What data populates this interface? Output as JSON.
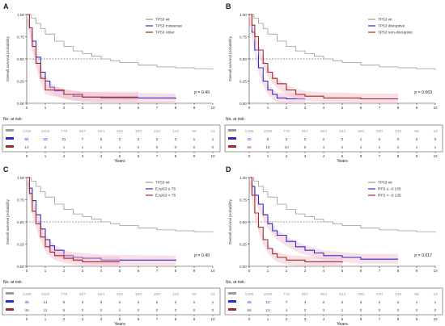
{
  "chart_data": [
    {
      "type": "line",
      "panel_label": "A",
      "ylabel": "Overall survival probability",
      "xlabel": "Years",
      "xlim": [
        0,
        10
      ],
      "ylim": [
        0,
        1
      ],
      "x_ticks": [
        "0",
        "1",
        "2",
        "3",
        "4",
        "5",
        "6",
        "7",
        "8",
        "9",
        "10"
      ],
      "y_ticks": [
        "0.00",
        "0.25",
        "0.50",
        "0.75",
        "1.00"
      ],
      "median_line": 0.5,
      "legend_position": "top-right",
      "pvalue": "p = 0.49",
      "risk_title": "No. at risk:",
      "series": [
        {
          "name": "TP53 wt",
          "color": "#9a9a9a",
          "points": [
            [
              0,
              1
            ],
            [
              0.25,
              0.96
            ],
            [
              0.5,
              0.9
            ],
            [
              0.75,
              0.84
            ],
            [
              1,
              0.78
            ],
            [
              1.5,
              0.7
            ],
            [
              2,
              0.64
            ],
            [
              2.5,
              0.59
            ],
            [
              3,
              0.56
            ],
            [
              3.5,
              0.53
            ],
            [
              4,
              0.5
            ],
            [
              4.5,
              0.48
            ],
            [
              5,
              0.46
            ],
            [
              6,
              0.43
            ],
            [
              7,
              0.41
            ],
            [
              8,
              0.4
            ],
            [
              9,
              0.39
            ],
            [
              10,
              0.38
            ]
          ],
          "risk": [
            "1439",
            "1025",
            "778",
            "607",
            "504",
            "424",
            "320",
            "220",
            "143",
            "66",
            "19"
          ]
        },
        {
          "name": "TP53 missense",
          "color": "#2a2ac8",
          "points": [
            [
              0,
              1
            ],
            [
              0.15,
              0.85
            ],
            [
              0.3,
              0.7
            ],
            [
              0.5,
              0.52
            ],
            [
              0.75,
              0.35
            ],
            [
              1,
              0.25
            ],
            [
              1.25,
              0.18
            ],
            [
              1.5,
              0.14
            ],
            [
              2,
              0.1
            ],
            [
              2.5,
              0.08
            ],
            [
              3,
              0.07
            ],
            [
              4,
              0.06
            ],
            [
              8,
              0.05
            ]
          ],
          "risk": [
            "84",
            "22",
            "11",
            "7",
            "5",
            "3",
            "2",
            "2",
            "2",
            "1",
            "1"
          ]
        },
        {
          "name": "TP53 other",
          "color": "#9b2d24",
          "points": [
            [
              0,
              1
            ],
            [
              0.15,
              0.85
            ],
            [
              0.3,
              0.64
            ],
            [
              0.5,
              0.45
            ],
            [
              0.75,
              0.28
            ],
            [
              1,
              0.15
            ],
            [
              2,
              0.1
            ],
            [
              3,
              0.07
            ],
            [
              6,
              0.07
            ]
          ],
          "risk": [
            "14",
            "2",
            "1",
            "1",
            "1",
            "1",
            "0",
            "0",
            "0",
            "0",
            "0"
          ]
        }
      ]
    },
    {
      "type": "line",
      "panel_label": "B",
      "ylabel": "Overall survival probability",
      "xlabel": "Years",
      "xlim": [
        0,
        10
      ],
      "ylim": [
        0,
        1
      ],
      "x_ticks": [
        "0",
        "1",
        "2",
        "3",
        "4",
        "5",
        "6",
        "7",
        "8",
        "9",
        "10"
      ],
      "y_ticks": [
        "0.00",
        "0.25",
        "0.50",
        "0.75",
        "1.00"
      ],
      "median_line": 0.5,
      "legend_position": "top-right",
      "pvalue": "p = 0.063",
      "risk_title": "No. at risk:",
      "series": [
        {
          "name": "TP53 wt",
          "color": "#9a9a9a",
          "points": [
            [
              0,
              1
            ],
            [
              0.25,
              0.96
            ],
            [
              0.5,
              0.9
            ],
            [
              0.75,
              0.84
            ],
            [
              1,
              0.78
            ],
            [
              1.5,
              0.7
            ],
            [
              2,
              0.64
            ],
            [
              2.5,
              0.59
            ],
            [
              3,
              0.56
            ],
            [
              3.5,
              0.53
            ],
            [
              4,
              0.5
            ],
            [
              4.5,
              0.48
            ],
            [
              5,
              0.46
            ],
            [
              6,
              0.43
            ],
            [
              7,
              0.41
            ],
            [
              8,
              0.4
            ],
            [
              9,
              0.39
            ],
            [
              10,
              0.38
            ]
          ],
          "risk": [
            "1439",
            "1025",
            "778",
            "607",
            "504",
            "424",
            "320",
            "220",
            "143",
            "66",
            "19"
          ]
        },
        {
          "name": "TP53 disruptive",
          "color": "#2a2ac8",
          "points": [
            [
              0,
              1
            ],
            [
              0.15,
              0.8
            ],
            [
              0.3,
              0.6
            ],
            [
              0.5,
              0.4
            ],
            [
              0.75,
              0.25
            ],
            [
              1,
              0.15
            ],
            [
              1.25,
              0.1
            ],
            [
              1.5,
              0.06
            ],
            [
              2,
              0.05
            ],
            [
              3,
              0.05
            ]
          ],
          "risk": [
            "42",
            "6",
            "2",
            "2",
            "2",
            "2",
            "1",
            "0",
            "0",
            "0",
            "0"
          ]
        },
        {
          "name": "TP53 non-disruptive",
          "color": "#9b2d24",
          "points": [
            [
              0,
              1
            ],
            [
              0.15,
              0.88
            ],
            [
              0.3,
              0.75
            ],
            [
              0.5,
              0.6
            ],
            [
              0.75,
              0.45
            ],
            [
              1,
              0.35
            ],
            [
              1.25,
              0.28
            ],
            [
              1.5,
              0.22
            ],
            [
              2,
              0.15
            ],
            [
              2.5,
              0.1
            ],
            [
              3,
              0.08
            ],
            [
              4,
              0.06
            ],
            [
              5,
              0.06
            ],
            [
              6,
              0.05
            ],
            [
              8,
              0.05
            ]
          ],
          "risk": [
            "56",
            "18",
            "10",
            "6",
            "4",
            "2",
            "2",
            "2",
            "2",
            "1",
            "1"
          ]
        }
      ]
    },
    {
      "type": "line",
      "panel_label": "C",
      "ylabel": "Overall survival probability",
      "xlabel": "Years",
      "xlim": [
        0,
        10
      ],
      "ylim": [
        0,
        1
      ],
      "x_ticks": [
        "0",
        "1",
        "2",
        "3",
        "4",
        "5",
        "6",
        "7",
        "8",
        "9",
        "10"
      ],
      "y_ticks": [
        "0.00",
        "0.25",
        "0.50",
        "0.75",
        "1.00"
      ],
      "median_line": 0.5,
      "legend_position": "top-right",
      "pvalue": "p = 0.49",
      "risk_title": "No. at risk:",
      "series": [
        {
          "name": "TP53 wt",
          "color": "#9a9a9a",
          "points": [
            [
              0,
              1
            ],
            [
              0.25,
              0.96
            ],
            [
              0.5,
              0.9
            ],
            [
              0.75,
              0.84
            ],
            [
              1,
              0.78
            ],
            [
              1.5,
              0.7
            ],
            [
              2,
              0.64
            ],
            [
              2.5,
              0.59
            ],
            [
              3,
              0.56
            ],
            [
              3.5,
              0.53
            ],
            [
              4,
              0.5
            ],
            [
              4.5,
              0.48
            ],
            [
              5,
              0.46
            ],
            [
              6,
              0.43
            ],
            [
              7,
              0.41
            ],
            [
              8,
              0.4
            ],
            [
              9,
              0.39
            ],
            [
              10,
              0.38
            ]
          ],
          "risk": [
            "1439",
            "1025",
            "778",
            "607",
            "504",
            "424",
            "320",
            "220",
            "143",
            "66",
            "19"
          ]
        },
        {
          "name": "EAp53 ≤ 75",
          "color": "#2a2ac8",
          "points": [
            [
              0,
              1
            ],
            [
              0.15,
              0.88
            ],
            [
              0.3,
              0.74
            ],
            [
              0.5,
              0.58
            ],
            [
              0.75,
              0.42
            ],
            [
              1,
              0.3
            ],
            [
              1.25,
              0.23
            ],
            [
              1.5,
              0.18
            ],
            [
              2,
              0.12
            ],
            [
              2.5,
              0.1
            ],
            [
              3,
              0.09
            ],
            [
              4,
              0.07
            ],
            [
              8,
              0.06
            ]
          ],
          "risk": [
            "35",
            "11",
            "5",
            "4",
            "3",
            "2",
            "2",
            "2",
            "2",
            "1",
            "1"
          ]
        },
        {
          "name": "EAp53 > 75",
          "color": "#9b2d24",
          "points": [
            [
              0,
              1
            ],
            [
              0.15,
              0.82
            ],
            [
              0.3,
              0.62
            ],
            [
              0.5,
              0.48
            ],
            [
              0.75,
              0.33
            ],
            [
              1,
              0.22
            ],
            [
              1.25,
              0.16
            ],
            [
              1.5,
              0.12
            ],
            [
              2,
              0.09
            ],
            [
              2.5,
              0.07
            ],
            [
              3,
              0.05
            ],
            [
              5,
              0.05
            ]
          ],
          "risk": [
            "49",
            "11",
            "6",
            "3",
            "2",
            "1",
            "0",
            "0",
            "0",
            "0",
            "0"
          ]
        }
      ]
    },
    {
      "type": "line",
      "panel_label": "D",
      "ylabel": "Overall survival probability",
      "xlabel": "Years",
      "xlim": [
        0,
        10
      ],
      "ylim": [
        0,
        1
      ],
      "x_ticks": [
        "0",
        "1",
        "2",
        "3",
        "4",
        "5",
        "6",
        "7",
        "8",
        "9",
        "10"
      ],
      "y_ticks": [
        "0.00",
        "0.25",
        "0.50",
        "0.75",
        "1.00"
      ],
      "median_line": 0.5,
      "legend_position": "top-right",
      "pvalue": "p = 0.017",
      "risk_title": "No. at risk:",
      "series": [
        {
          "name": "TP53 wt",
          "color": "#9a9a9a",
          "points": [
            [
              0,
              1
            ],
            [
              0.25,
              0.96
            ],
            [
              0.5,
              0.9
            ],
            [
              0.75,
              0.84
            ],
            [
              1,
              0.78
            ],
            [
              1.5,
              0.7
            ],
            [
              2,
              0.64
            ],
            [
              2.5,
              0.59
            ],
            [
              3,
              0.56
            ],
            [
              3.5,
              0.53
            ],
            [
              4,
              0.5
            ],
            [
              4.5,
              0.48
            ],
            [
              5,
              0.46
            ],
            [
              6,
              0.43
            ],
            [
              7,
              0.41
            ],
            [
              8,
              0.4
            ],
            [
              9,
              0.39
            ],
            [
              10,
              0.38
            ]
          ],
          "risk": [
            "1439",
            "1025",
            "778",
            "607",
            "504",
            "424",
            "320",
            "220",
            "143",
            "66",
            "19"
          ]
        },
        {
          "name": "RFS ≤ -0.135",
          "color": "#2a2ac8",
          "points": [
            [
              0,
              1
            ],
            [
              0.15,
              0.9
            ],
            [
              0.3,
              0.8
            ],
            [
              0.5,
              0.7
            ],
            [
              0.75,
              0.58
            ],
            [
              1,
              0.48
            ],
            [
              1.25,
              0.4
            ],
            [
              1.5,
              0.35
            ],
            [
              2,
              0.28
            ],
            [
              2.5,
              0.22
            ],
            [
              3,
              0.18
            ],
            [
              3.5,
              0.15
            ],
            [
              4,
              0.12
            ],
            [
              5,
              0.1
            ],
            [
              6,
              0.08
            ],
            [
              8,
              0.08
            ]
          ],
          "risk": [
            "25",
            "12",
            "7",
            "4",
            "2",
            "2",
            "2",
            "2",
            "2",
            "1",
            "1"
          ]
        },
        {
          "name": "RFS > -0.135",
          "color": "#9b2d24",
          "points": [
            [
              0,
              1
            ],
            [
              0.15,
              0.8
            ],
            [
              0.3,
              0.6
            ],
            [
              0.5,
              0.44
            ],
            [
              0.75,
              0.3
            ],
            [
              1,
              0.2
            ],
            [
              1.25,
              0.14
            ],
            [
              1.5,
              0.1
            ],
            [
              2,
              0.07
            ],
            [
              3,
              0.05
            ],
            [
              5,
              0.04
            ]
          ],
          "risk": [
            "58",
            "10",
            "4",
            "3",
            "3",
            "1",
            "0",
            "0",
            "0",
            "0",
            "0"
          ]
        }
      ]
    }
  ]
}
